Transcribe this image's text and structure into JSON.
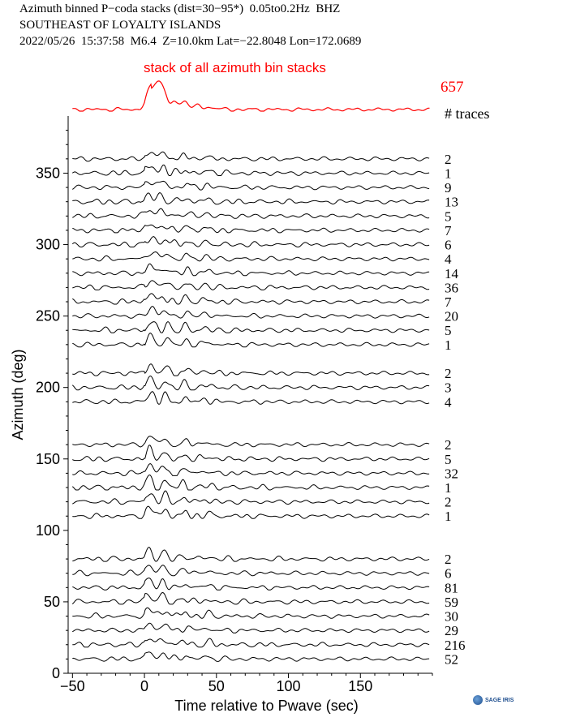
{
  "header": {
    "line1": "Azimuth binned P−coda stacks (dist=30−95*)  0.05to0.2Hz  BHZ",
    "line2": "SOUTHEAST OF LOYALTY ISLANDS",
    "line3": "2022/05/26  15:37:58  M6.4  Z=10.0km Lat=−22.8048 Lon=172.0689"
  },
  "stack": {
    "label": "stack of all azimuth bin stacks",
    "count": "657",
    "traces_label": "# traces",
    "color": "#ff0000"
  },
  "logo": {
    "text": "SAGE IRIS"
  },
  "chart_data": {
    "type": "line",
    "xlabel": "Time relative to Pwave (sec)",
    "ylabel": "Azimuth (deg)",
    "xlim": [
      -53,
      200
    ],
    "ylim": [
      0,
      390
    ],
    "xticks": [
      -50,
      0,
      50,
      100,
      150
    ],
    "xtick_labels": [
      "−50",
      "0",
      "50",
      "100",
      "150"
    ],
    "yticks": [
      0,
      50,
      100,
      150,
      200,
      250,
      300,
      350
    ],
    "grid": false,
    "series": [
      {
        "azimuth": 360,
        "count": "2"
      },
      {
        "azimuth": 350,
        "count": "1"
      },
      {
        "azimuth": 340,
        "count": "9"
      },
      {
        "azimuth": 330,
        "count": "13"
      },
      {
        "azimuth": 320,
        "count": "5"
      },
      {
        "azimuth": 310,
        "count": "7"
      },
      {
        "azimuth": 300,
        "count": "6"
      },
      {
        "azimuth": 290,
        "count": "4"
      },
      {
        "azimuth": 280,
        "count": "14"
      },
      {
        "azimuth": 270,
        "count": "36"
      },
      {
        "azimuth": 260,
        "count": "7"
      },
      {
        "azimuth": 250,
        "count": "20"
      },
      {
        "azimuth": 240,
        "count": "5"
      },
      {
        "azimuth": 230,
        "count": "1"
      },
      {
        "azimuth": 210,
        "count": "2"
      },
      {
        "azimuth": 200,
        "count": "3"
      },
      {
        "azimuth": 190,
        "count": "4"
      },
      {
        "azimuth": 160,
        "count": "2"
      },
      {
        "azimuth": 150,
        "count": "5"
      },
      {
        "azimuth": 140,
        "count": "32"
      },
      {
        "azimuth": 130,
        "count": "1"
      },
      {
        "azimuth": 120,
        "count": "2"
      },
      {
        "azimuth": 110,
        "count": "1"
      },
      {
        "azimuth": 80,
        "count": "2"
      },
      {
        "azimuth": 70,
        "count": "6"
      },
      {
        "azimuth": 60,
        "count": "81"
      },
      {
        "azimuth": 50,
        "count": "59"
      },
      {
        "azimuth": 40,
        "count": "30"
      },
      {
        "azimuth": 30,
        "count": "29"
      },
      {
        "azimuth": 20,
        "count": "216"
      },
      {
        "azimuth": 10,
        "count": "52"
      }
    ]
  }
}
